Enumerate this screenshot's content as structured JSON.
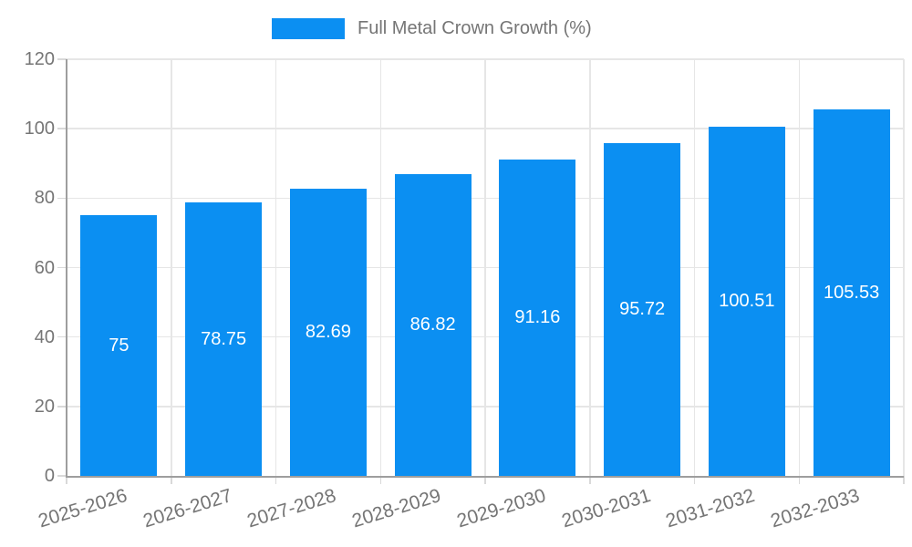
{
  "chart_data": {
    "type": "bar",
    "title": "",
    "legend": "Full Metal Crown Growth (%)",
    "legend_position": "top",
    "grid": true,
    "categories": [
      "2025-2026",
      "2026-2027",
      "2027-2028",
      "2028-2029",
      "2029-2030",
      "2030-2031",
      "2031-2032",
      "2032-2033"
    ],
    "values": [
      75,
      78.75,
      82.69,
      86.82,
      91.16,
      95.72,
      100.51,
      105.53
    ],
    "value_labels": [
      "75",
      "78.75",
      "82.69",
      "86.82",
      "91.16",
      "95.72",
      "100.51",
      "105.53"
    ],
    "xlabel": "",
    "ylabel": "",
    "ylim": [
      0,
      120
    ],
    "yticks": [
      0,
      20,
      40,
      60,
      80,
      100,
      120
    ],
    "colors": {
      "bar": "#0b8ff2",
      "bar_label": "#ffffff",
      "axis_text": "#757575",
      "grid_line": "#e6e6e6",
      "axis_line": "#9e9e9e",
      "tick_mark": "#d9d9d9",
      "background": "#ffffff"
    }
  }
}
